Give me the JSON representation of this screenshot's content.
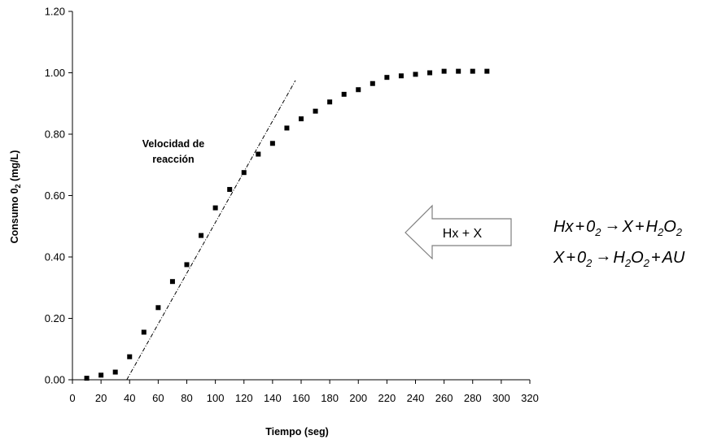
{
  "chart_data": {
    "type": "scatter",
    "xlabel": "Tiempo (seg)",
    "ylabel_main": "Consumo 0",
    "ylabel_sub": "2",
    "ylabel_tail": " (mg/L)",
    "xlim": [
      0,
      320
    ],
    "ylim": [
      0,
      1.2
    ],
    "xticks": [
      "0",
      "20",
      "40",
      "60",
      "80",
      "100",
      "120",
      "140",
      "160",
      "180",
      "200",
      "220",
      "240",
      "260",
      "280",
      "300",
      "320"
    ],
    "yticks": [
      "0.00",
      "0.20",
      "0.40",
      "0.60",
      "0.80",
      "1.00",
      "1.20"
    ],
    "grid": false,
    "legend": "none",
    "x": [
      10,
      20,
      30,
      40,
      50,
      60,
      70,
      80,
      90,
      100,
      110,
      120,
      130,
      140,
      150,
      160,
      170,
      180,
      190,
      200,
      210,
      220,
      230,
      240,
      250,
      260,
      270,
      280,
      290
    ],
    "y": [
      0.005,
      0.015,
      0.025,
      0.075,
      0.155,
      0.235,
      0.32,
      0.375,
      0.47,
      0.56,
      0.62,
      0.675,
      0.735,
      0.77,
      0.82,
      0.85,
      0.875,
      0.905,
      0.93,
      0.945,
      0.965,
      0.985,
      0.99,
      0.995,
      1.0,
      1.005,
      1.005,
      1.005,
      1.005
    ],
    "tangent_line": {
      "x": [
        38,
        156
      ],
      "y": [
        0.0,
        0.975
      ]
    },
    "annotation": {
      "line1": "Velocidad de",
      "line2": "reacción"
    },
    "arrow_label": "Hx + X",
    "equations": {
      "eq1": {
        "a": "Hx",
        "b": "+",
        "c": "0",
        "c_sub": "2",
        "arrow": "→",
        "d": "X",
        "e": "+",
        "f": "H",
        "f_sub": "2",
        "g": "O",
        "g_sub": "2"
      },
      "eq2": {
        "a": "X",
        "b": "+",
        "c": "0",
        "c_sub": "2",
        "arrow": "→",
        "d": "H",
        "d_sub": "2",
        "e": "O",
        "e_sub": "2",
        "f": "+",
        "g": "AU"
      }
    },
    "colors": {
      "marker": "#000000",
      "axis": "#000000",
      "arrow_fill": "#ffffff"
    }
  }
}
